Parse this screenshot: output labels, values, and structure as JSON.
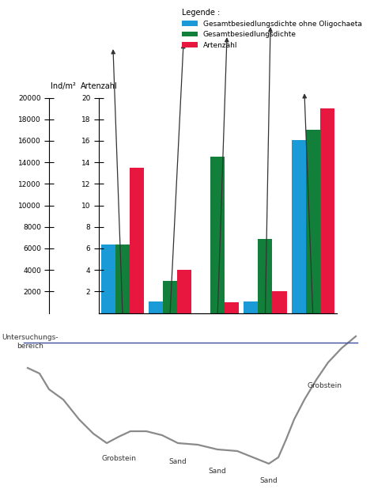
{
  "chart_data": {
    "type": "bar",
    "categories": [
      null,
      null,
      null,
      null,
      null
    ],
    "y_label": "Ind/m²",
    "y2_label": "Artenzahl",
    "legend_title": "Legende :",
    "legend": "upper right",
    "ylim": [
      0,
      20000
    ],
    "yticks": [
      2000,
      4000,
      6000,
      8000,
      10000,
      12000,
      14000,
      16000,
      18000,
      20000
    ],
    "y2lim": [
      0,
      20
    ],
    "y2ticks": [
      2,
      4,
      6,
      8,
      10,
      12,
      14,
      16,
      18,
      20
    ],
    "series": [
      {
        "name": "Gesamtbesiedlungsdichte ohne Oligochaeta",
        "color": "#1b9ad8",
        "values": [
          6400,
          1100,
          null,
          1100,
          16100
        ]
      },
      {
        "name": "Gesamtbesiedlungsdichte",
        "color": "#12803a",
        "values": [
          6400,
          3000,
          14500,
          6900,
          17000
        ]
      },
      {
        "name": "Artenzahl",
        "color": "#e8173f",
        "axis": "y2",
        "values": [
          13.5,
          4,
          1,
          2,
          19
        ]
      }
    ],
    "annotations": [
      "Untersuchungs-\nbereich",
      "Grobstein",
      "Sand",
      "Sand",
      "Sand",
      "Grobstein"
    ]
  }
}
